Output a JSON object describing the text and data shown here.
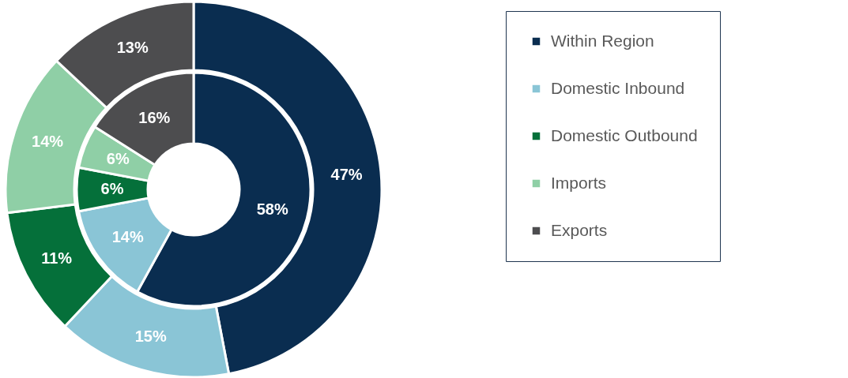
{
  "chart_data": {
    "type": "donut",
    "categories": [
      "Within Region",
      "Domestic Inbound",
      "Domestic Outbound",
      "Imports",
      "Exports"
    ],
    "colors": [
      "#0a2d50",
      "#8ac5d6",
      "#05703a",
      "#8fcfa6",
      "#4d4d4f"
    ],
    "series": [
      {
        "values": [
          58,
          14,
          6,
          6,
          16
        ],
        "value_labels": [
          "58%",
          "14%",
          "6%",
          "6%",
          "16%"
        ]
      },
      {
        "values": [
          47,
          15,
          11,
          14,
          13
        ],
        "value_labels": [
          "47%",
          "15%",
          "11%",
          "14%",
          "13%"
        ]
      }
    ],
    "legend": "right"
  }
}
